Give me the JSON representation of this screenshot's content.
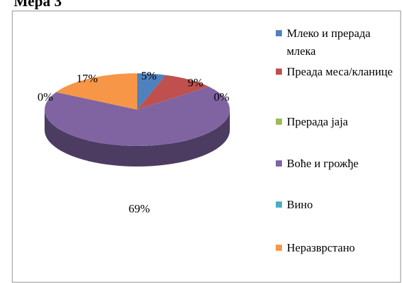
{
  "chart_data": {
    "type": "pie",
    "title": "Мера 3",
    "categories": [
      "Млеко и прерада млека",
      "Преада меса/кланице",
      "Прерада јаја",
      "Воће и грожђе",
      "Вино",
      "Неразврстано"
    ],
    "values": [
      5,
      9,
      0,
      69,
      0,
      17
    ],
    "value_labels": [
      "5%",
      "9%",
      "0%",
      "69%",
      "0%",
      "17%"
    ],
    "colors": [
      "#4f81bd",
      "#c0504d",
      "#9bbb59",
      "#8064a2",
      "#4bacc6",
      "#f79646"
    ]
  }
}
